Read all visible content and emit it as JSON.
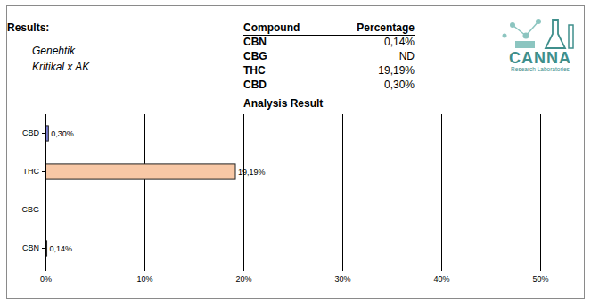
{
  "header": {
    "title": "Results:",
    "subtitle": [
      "Genehtik",
      "Kritikal x AK"
    ]
  },
  "logo": {
    "name": "CANNA",
    "tagline": "Research Laboratories"
  },
  "table": {
    "columns": [
      "Compound",
      "Percentage"
    ],
    "rows": [
      [
        "CBN",
        "0,14%"
      ],
      [
        "CBG",
        "ND"
      ],
      [
        "THC",
        "19,19%"
      ],
      [
        "CBD",
        "0,30%"
      ]
    ]
  },
  "chart_data": {
    "type": "bar",
    "title": "Analysis Result",
    "orientation": "horizontal",
    "categories": [
      "CBD",
      "THC",
      "CBG",
      "CBN"
    ],
    "values": [
      0.3,
      19.19,
      null,
      0.14
    ],
    "value_labels": [
      "0,30%",
      "19,19%",
      null,
      "0,14%"
    ],
    "data_labels": true,
    "colors": [
      "#7b7fd6",
      "#f8c8a6",
      "#bbbbbb",
      "#333333"
    ],
    "xlim": [
      0,
      50
    ],
    "xticks": [
      {
        "value": 0,
        "label": "0%"
      },
      {
        "value": 10,
        "label": "10%"
      },
      {
        "value": 20,
        "label": "20%"
      },
      {
        "value": 30,
        "label": "30%"
      },
      {
        "value": 40,
        "label": "40%"
      },
      {
        "value": 50,
        "label": "50%"
      }
    ],
    "grid": true
  }
}
